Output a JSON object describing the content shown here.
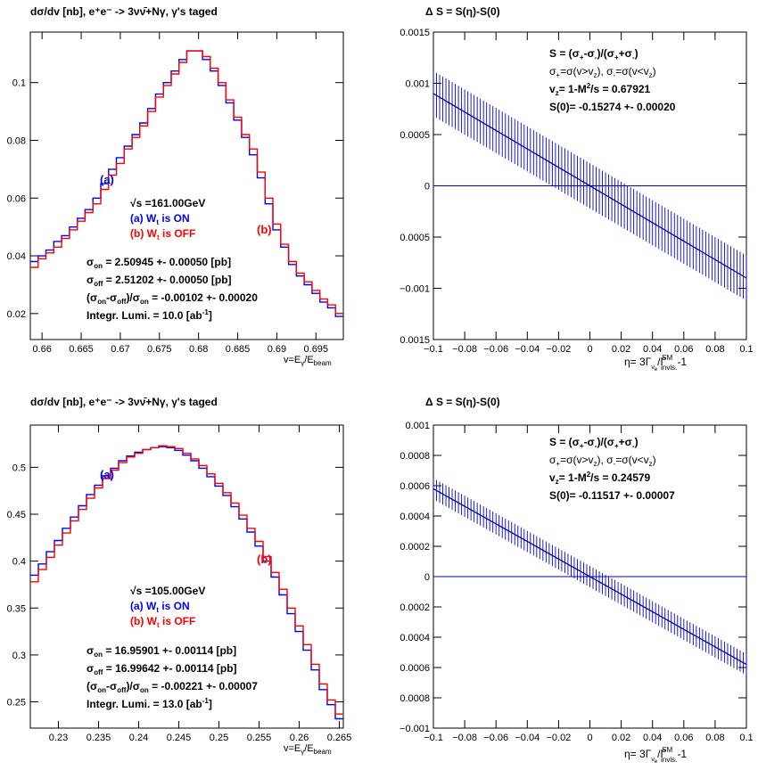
{
  "colors": {
    "on": "#0000ff",
    "off": "#ff0000",
    "band": "#0000ee",
    "axis": "#000000"
  },
  "panels": [
    {
      "title_html": "dσ/dv [nb], e<sup>+</sup>e<sup>-</sup> -> 3νν̄+Nγ, γ's taged",
      "title": "dσ/dv [nb],   e⁺e⁻ -> 3νν̄+Nγ,      γ's taged",
      "xlabel": "v=E_γ/E_beam",
      "marker_a": "(a)",
      "marker_b": "(b)",
      "sqrt_s": "√s =161.00GeV",
      "legend_on": "(a)  W_t is ON",
      "legend_off": "(b)  W_t is OFF",
      "stat_on": "σ_on  = 2.50945 +- 0.00050 [pb]",
      "stat_off": "σ_off = 2.51202 +- 0.00050 [pb]",
      "stat_diff": "(σ_on-σ_off)/σ_on = -0.00102 +- 0.00020",
      "lumi": "Integr. Lumi. = 10.0 [ab⁻¹]",
      "xticks": [
        "0.66",
        "0.665",
        "0.67",
        "0.675",
        "0.68",
        "0.685",
        "0.69",
        "0.695"
      ],
      "yticks": [
        "0.02",
        "0.04",
        "0.06",
        "0.08",
        "0.1"
      ]
    },
    {
      "title": "Δ S = S(η)-S(0)",
      "def_s": "S = (σ₊-σ₋)/(σ₊+σ₋)",
      "def_sigma": "σ₊=σ(v>v_z),   σ₋=σ(v<v_z)",
      "def_vz": "v_z= 1-M²/s = 0.67921",
      "s0": "S(0)= -0.15274 +- 0.00020",
      "xlabel": "η= 3Γ_νe/Γ^SM_invis.-1",
      "xticks": [
        "−0.1",
        "−0.08",
        "−0.06",
        "−0.04",
        "−0.02",
        "0",
        "0.02",
        "0.04",
        "0.06",
        "0.08",
        "0.1"
      ],
      "yticks": [
        "0.0015",
        "0.001",
        "0.0005",
        "0",
        "0.0005",
        "−0.001",
        "0.0015"
      ]
    },
    {
      "title": "dσ/dv [nb],   e⁺e⁻ -> 3νν̄+Nγ,      γ's taged",
      "xlabel": "v=E_γ/E_beam",
      "marker_a": "(a)",
      "marker_b": "(b)",
      "sqrt_s": "√s =105.00GeV",
      "legend_on": "(a)  W_t is ON",
      "legend_off": "(b)  W_t is OFF",
      "stat_on": "σ_on  = 16.95901 +- 0.00114 [pb]",
      "stat_off": "σ_off = 16.99642 +- 0.00114 [pb]",
      "stat_diff": "(σ_on-σ_off)/σ_on = -0.00221 +- 0.00007",
      "lumi": "Integr. Lumi. = 13.0 [ab⁻¹]",
      "xticks": [
        "0.23",
        "0.235",
        "0.24",
        "0.245",
        "0.25",
        "0.255",
        "0.26",
        "0.265"
      ],
      "yticks": [
        "0.25",
        "0.3",
        "0.35",
        "0.4",
        "0.45",
        "0.5"
      ]
    },
    {
      "title": "Δ S = S(η)-S(0)",
      "def_s": "S = (σ₊-σ₋)/(σ₊+σ₋)",
      "def_sigma": "σ₊=σ(v>v_z),   σ₋=σ(v<v_z)",
      "def_vz": "v_z= 1-M²/s = 0.24579",
      "s0": "S(0)= -0.11517 +- 0.00007",
      "xlabel": "η= 3Γ_νe/Γ^SM_invis.-1",
      "xticks": [
        "−0.1",
        "−0.08",
        "−0.06",
        "−0.04",
        "−0.02",
        "0",
        "0.02",
        "0.04",
        "0.06",
        "0.08",
        "0.1"
      ],
      "yticks": [
        "0.001",
        "0.0008",
        "0.0006",
        "0.0004",
        "0.0002",
        "0",
        "0.0002",
        "0.0004",
        "0.0006",
        "0.0008",
        "−0.001"
      ]
    }
  ],
  "chart_data": [
    {
      "type": "line",
      "subtype": "histogram",
      "title": "dσ/dv [nb],   e⁺e⁻ -> 3νν̄+Nγ,      γ's taged",
      "xlabel": "v=E_γ/E_beam",
      "xlim": [
        0.6585,
        0.6985
      ],
      "ylim": [
        0.011,
        0.1175
      ],
      "series": [
        {
          "name": "(a)  W_t is ON",
          "x": [
            0.6585,
            0.6595,
            0.6605,
            0.6615,
            0.6625,
            0.6635,
            0.6645,
            0.6655,
            0.6665,
            0.6675,
            0.6685,
            0.6695,
            0.6705,
            0.6715,
            0.6725,
            0.6735,
            0.6745,
            0.6755,
            0.6765,
            0.6775,
            0.6785,
            0.6795,
            0.6805,
            0.6815,
            0.6825,
            0.6835,
            0.6845,
            0.6855,
            0.6865,
            0.6875,
            0.6885,
            0.6895,
            0.6905,
            0.6915,
            0.6925,
            0.6935,
            0.6945,
            0.6955,
            0.6965,
            0.6975
          ],
          "values": [
            0.038,
            0.04,
            0.042,
            0.045,
            0.047,
            0.05,
            0.053,
            0.056,
            0.06,
            0.065,
            0.07,
            0.074,
            0.078,
            0.082,
            0.086,
            0.091,
            0.096,
            0.1,
            0.104,
            0.108,
            0.111,
            0.111,
            0.108,
            0.104,
            0.099,
            0.093,
            0.087,
            0.081,
            0.075,
            0.067,
            0.058,
            0.049,
            0.043,
            0.037,
            0.033,
            0.03,
            0.027,
            0.024,
            0.022,
            0.019
          ]
        },
        {
          "name": "(b)  W_t is OFF",
          "x": [
            0.6585,
            0.6595,
            0.6605,
            0.6615,
            0.6625,
            0.6635,
            0.6645,
            0.6655,
            0.6665,
            0.6675,
            0.6685,
            0.6695,
            0.6705,
            0.6715,
            0.6725,
            0.6735,
            0.6745,
            0.6755,
            0.6765,
            0.6775,
            0.6785,
            0.6795,
            0.6805,
            0.6815,
            0.6825,
            0.6835,
            0.6845,
            0.6855,
            0.6865,
            0.6875,
            0.6885,
            0.6895,
            0.6905,
            0.6915,
            0.6925,
            0.6935,
            0.6945,
            0.6955,
            0.6965,
            0.6975
          ],
          "values": [
            0.036,
            0.039,
            0.041,
            0.043,
            0.046,
            0.049,
            0.052,
            0.055,
            0.058,
            0.063,
            0.068,
            0.072,
            0.077,
            0.081,
            0.085,
            0.09,
            0.095,
            0.099,
            0.103,
            0.107,
            0.111,
            0.111,
            0.109,
            0.105,
            0.1,
            0.094,
            0.088,
            0.082,
            0.077,
            0.069,
            0.06,
            0.051,
            0.044,
            0.038,
            0.034,
            0.031,
            0.028,
            0.025,
            0.023,
            0.02
          ]
        }
      ]
    },
    {
      "type": "line",
      "subtype": "band",
      "title": "Δ S = S(η)-S(0)",
      "xlabel": "η= 3Γ_νe/Γ^SM_invis.-1",
      "xlim": [
        -0.1,
        0.1
      ],
      "ylim": [
        -0.0015,
        0.0015
      ],
      "series": [
        {
          "name": "ΔS",
          "x": [
            -0.1,
            0.1
          ],
          "values": [
            0.0009,
            -0.0009
          ],
          "band": 0.00022
        },
        {
          "name": "zero",
          "x": [
            -0.1,
            0.1
          ],
          "values": [
            0,
            0
          ]
        }
      ]
    },
    {
      "type": "line",
      "subtype": "histogram",
      "title": "dσ/dv [nb],   e⁺e⁻ -> 3νν̄+Nγ,      γ's taged",
      "xlabel": "v=E_γ/E_beam",
      "xlim": [
        0.2265,
        0.2655
      ],
      "ylim": [
        0.222,
        0.545
      ],
      "series": [
        {
          "name": "(a)  W_t is ON",
          "x": [
            0.2265,
            0.2275,
            0.2285,
            0.2295,
            0.2305,
            0.2315,
            0.2325,
            0.2335,
            0.2345,
            0.2355,
            0.2365,
            0.2375,
            0.2385,
            0.2395,
            0.2405,
            0.2415,
            0.2425,
            0.2435,
            0.2445,
            0.2455,
            0.2465,
            0.2475,
            0.2485,
            0.2495,
            0.2505,
            0.2515,
            0.2525,
            0.2535,
            0.2545,
            0.2555,
            0.2565,
            0.2575,
            0.2585,
            0.2595,
            0.2605,
            0.2615,
            0.2625,
            0.2635,
            0.2645
          ],
          "values": [
            0.385,
            0.397,
            0.41,
            0.422,
            0.435,
            0.447,
            0.459,
            0.471,
            0.481,
            0.491,
            0.499,
            0.507,
            0.512,
            0.516,
            0.519,
            0.521,
            0.522,
            0.521,
            0.518,
            0.513,
            0.507,
            0.499,
            0.49,
            0.48,
            0.47,
            0.458,
            0.445,
            0.431,
            0.416,
            0.4,
            0.383,
            0.364,
            0.344,
            0.325,
            0.305,
            0.284,
            0.263,
            0.247,
            0.232
          ]
        },
        {
          "name": "(b)  W_t is OFF",
          "x": [
            0.2265,
            0.2275,
            0.2285,
            0.2295,
            0.2305,
            0.2315,
            0.2325,
            0.2335,
            0.2345,
            0.2355,
            0.2365,
            0.2375,
            0.2385,
            0.2395,
            0.2405,
            0.2415,
            0.2425,
            0.2435,
            0.2445,
            0.2455,
            0.2465,
            0.2475,
            0.2485,
            0.2495,
            0.2505,
            0.2515,
            0.2525,
            0.2535,
            0.2545,
            0.2555,
            0.2565,
            0.2575,
            0.2585,
            0.2595,
            0.2605,
            0.2615,
            0.2625,
            0.2635,
            0.2645
          ],
          "values": [
            0.378,
            0.391,
            0.404,
            0.417,
            0.43,
            0.443,
            0.455,
            0.467,
            0.478,
            0.488,
            0.497,
            0.505,
            0.511,
            0.515,
            0.519,
            0.521,
            0.523,
            0.522,
            0.52,
            0.515,
            0.509,
            0.502,
            0.493,
            0.483,
            0.473,
            0.462,
            0.449,
            0.435,
            0.421,
            0.405,
            0.388,
            0.37,
            0.35,
            0.331,
            0.311,
            0.29,
            0.269,
            0.252,
            0.237
          ]
        }
      ]
    },
    {
      "type": "line",
      "subtype": "band",
      "title": "Δ S = S(η)-S(0)",
      "xlabel": "η= 3Γ_νe/Γ^SM_invis.-1",
      "xlim": [
        -0.1,
        0.1
      ],
      "ylim": [
        -0.001,
        0.001
      ],
      "series": [
        {
          "name": "ΔS",
          "x": [
            -0.1,
            0.1
          ],
          "values": [
            0.00058,
            -0.00058
          ],
          "band": 7e-05
        },
        {
          "name": "zero",
          "x": [
            -0.1,
            0.1
          ],
          "values": [
            0,
            0
          ]
        }
      ]
    }
  ]
}
